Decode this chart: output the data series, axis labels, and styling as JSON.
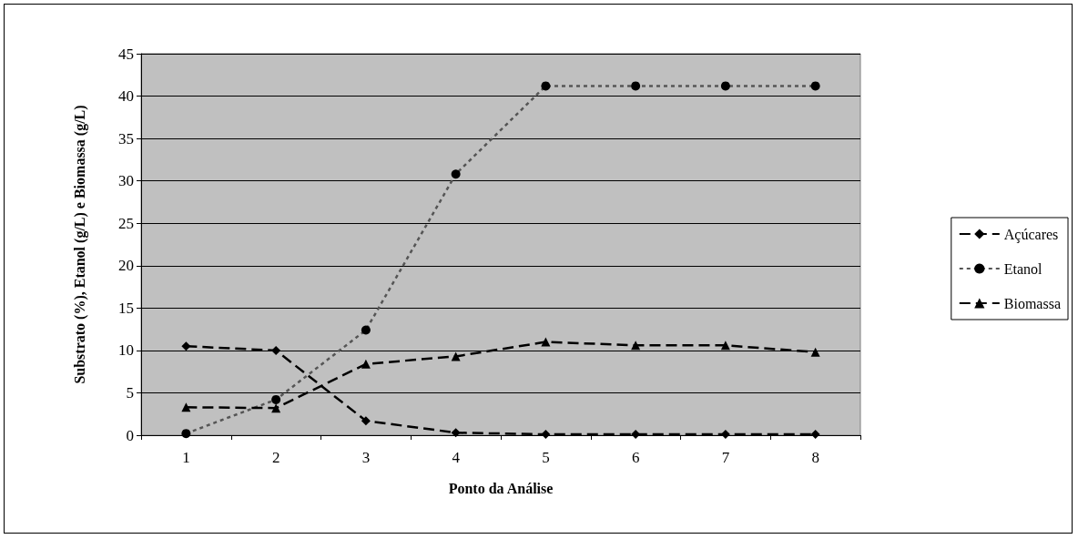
{
  "chart_data": {
    "type": "line",
    "xlabel": "Ponto da Análise",
    "ylabel": "Substrato (%), Etanol (g/L) e Biomassa (g/L)",
    "categories": [
      "1",
      "2",
      "3",
      "4",
      "5",
      "6",
      "7",
      "8"
    ],
    "series": [
      {
        "name": "Açúcares",
        "color": "#000000",
        "marker": "diamond",
        "line_style": "dashed",
        "values": [
          10.5,
          10.0,
          1.7,
          0.3,
          0.1,
          0.1,
          0.1,
          0.1
        ]
      },
      {
        "name": "Etanol",
        "color": "#555555",
        "marker": "circle",
        "line_style": "dotted",
        "values": [
          0.2,
          4.2,
          12.4,
          30.8,
          41.2,
          41.2,
          41.2,
          41.2
        ]
      },
      {
        "name": "Biomassa",
        "color": "#000000",
        "marker": "triangle",
        "line_style": "dashed",
        "values": [
          3.3,
          3.2,
          8.4,
          9.3,
          11.0,
          10.6,
          10.6,
          9.8
        ]
      }
    ],
    "ylim": [
      0,
      45
    ],
    "yticks": [
      0,
      5,
      10,
      15,
      20,
      25,
      30,
      35,
      40,
      45
    ],
    "grid": "y",
    "legend": "right"
  }
}
